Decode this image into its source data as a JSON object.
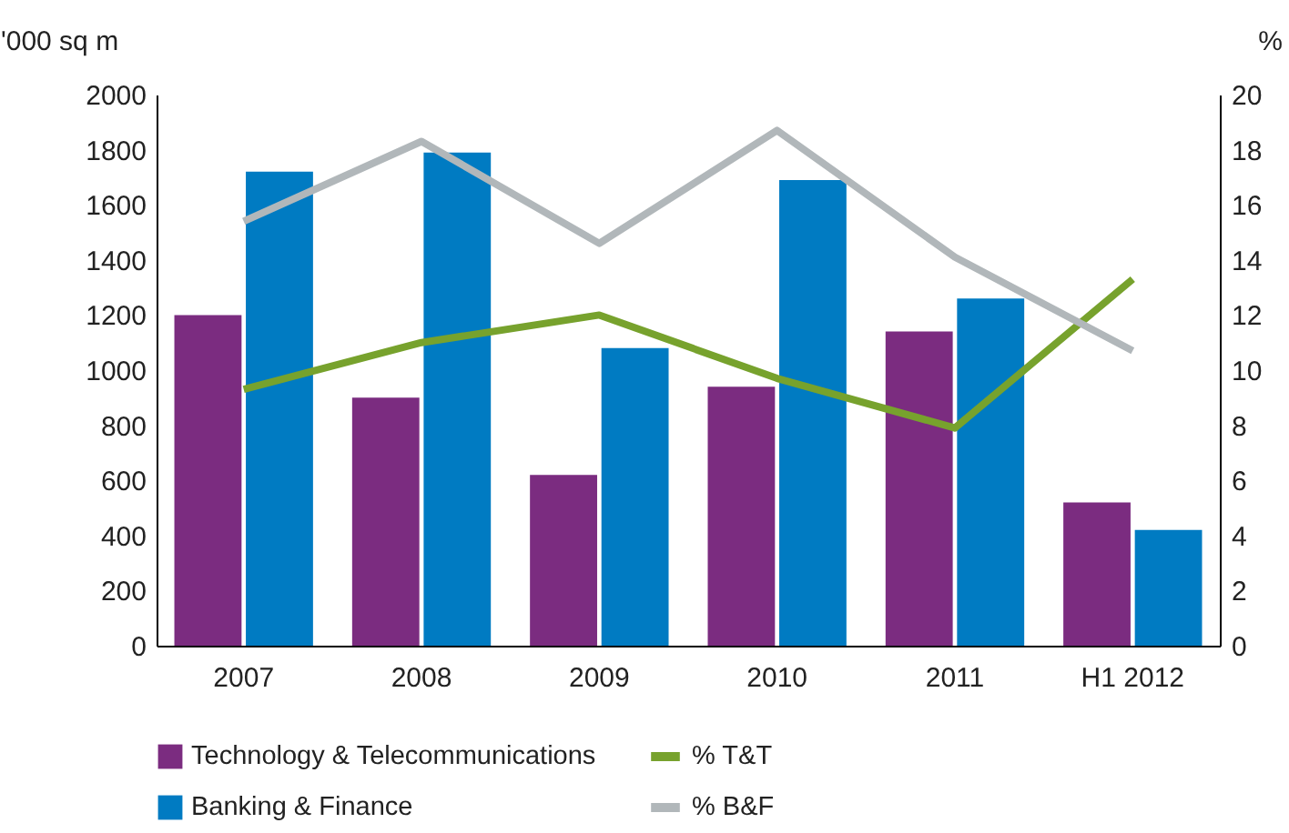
{
  "chart_data": {
    "type": "bar",
    "categories": [
      "2007",
      "2008",
      "2009",
      "2010",
      "2011",
      "H1 2012"
    ],
    "ylabel": "'000 sq m",
    "y2label": "%",
    "ylim": [
      0,
      2000
    ],
    "yticks": [
      0,
      200,
      400,
      600,
      800,
      {
        "value": 1000,
        "label": "1000"
      },
      {
        "value": 1200,
        "label": "1200"
      },
      {
        "value": 1400,
        "label": "1400"
      },
      {
        "value": 1600,
        "label": "1600"
      },
      {
        "value": 1800,
        "label": "1800"
      },
      {
        "value": 2000,
        "label": "2000"
      }
    ],
    "y2lim": [
      0,
      20
    ],
    "y2ticks": [
      0,
      2,
      4,
      6,
      8,
      10,
      12,
      14,
      16,
      18,
      20
    ],
    "grid": false,
    "legend": "bottom",
    "series": [
      {
        "name": "Technology & Telecommunications",
        "color": "#7b2c80",
        "values": [
          1200,
          900,
          620,
          940,
          1140,
          520
        ]
      },
      {
        "name": "Banking & Finance",
        "color": "#007bc2",
        "values": [
          1720,
          1790,
          1080,
          1690,
          1260,
          420
        ]
      },
      {
        "name": "% T&T",
        "type": "line",
        "axis": "y2",
        "color": "#77a22d",
        "values": [
          9.3,
          11.0,
          12.0,
          9.7,
          7.9,
          13.3
        ]
      },
      {
        "name": "% B&F",
        "type": "line",
        "axis": "y2",
        "color": "#b1b7ba",
        "values": [
          15.4,
          18.3,
          14.6,
          18.7,
          14.1,
          10.7
        ]
      }
    ]
  }
}
